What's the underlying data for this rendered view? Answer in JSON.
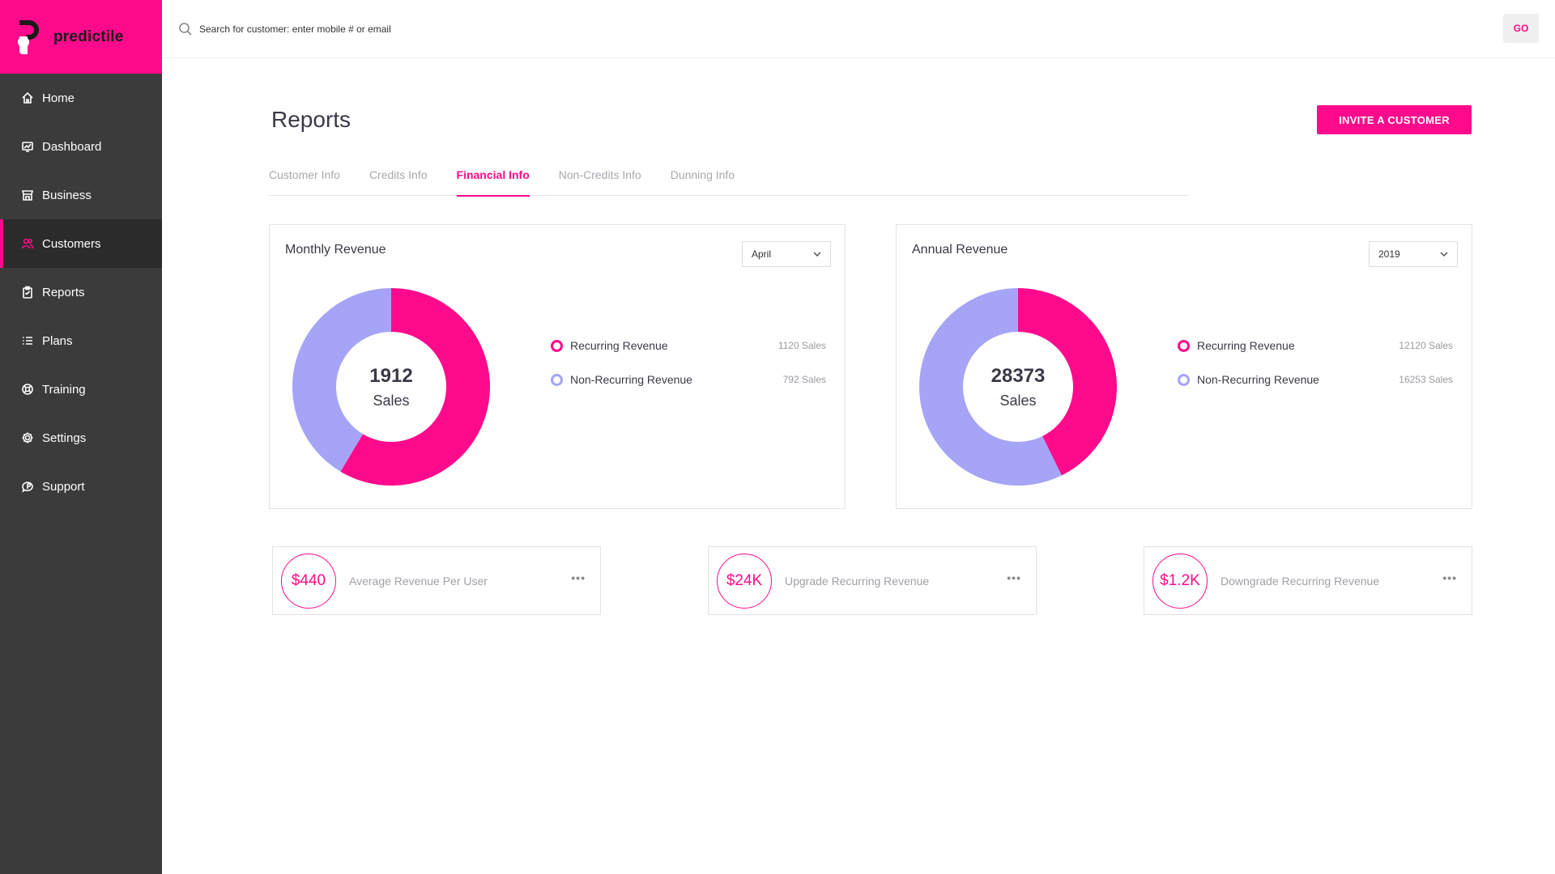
{
  "brand": {
    "name": "predictile",
    "color": "#ff0a8c"
  },
  "sidebar": {
    "items": [
      {
        "label": "Home",
        "icon": "home-icon"
      },
      {
        "label": "Dashboard",
        "icon": "dashboard-icon"
      },
      {
        "label": "Business",
        "icon": "store-icon"
      },
      {
        "label": "Customers",
        "icon": "users-icon",
        "active": true
      },
      {
        "label": "Reports",
        "icon": "clipboard-icon"
      },
      {
        "label": "Plans",
        "icon": "list-icon"
      },
      {
        "label": "Training",
        "icon": "lifebuoy-icon"
      },
      {
        "label": "Settings",
        "icon": "gear-icon"
      },
      {
        "label": "Support",
        "icon": "support-icon"
      }
    ]
  },
  "search": {
    "placeholder": "Search for customer: enter mobile # or email",
    "button": "GO"
  },
  "page": {
    "title": "Reports",
    "invite_button": "INVITE A CUSTOMER"
  },
  "tabs": [
    {
      "label": "Customer Info"
    },
    {
      "label": "Credits Info"
    },
    {
      "label": "Financial Info",
      "active": true
    },
    {
      "label": "Non-Credits Info"
    },
    {
      "label": "Dunning Info"
    }
  ],
  "monthly": {
    "title": "Monthly Revenue",
    "period": "April",
    "total": "1912",
    "unit": "Sales",
    "legend": [
      {
        "label": "Recurring Revenue",
        "count": "1120 Sales",
        "color": "#ff0a8c"
      },
      {
        "label": "Non-Recurring Revenue",
        "count": "792 Sales",
        "color": "#a6a4f6"
      }
    ]
  },
  "annual": {
    "title": "Annual Revenue",
    "period": "2019",
    "total": "28373",
    "unit": "Sales",
    "legend": [
      {
        "label": "Recurring Revenue",
        "count": "12120 Sales",
        "color": "#ff0a8c"
      },
      {
        "label": "Non-Recurring Revenue",
        "count": "16253 Sales",
        "color": "#a6a4f6"
      }
    ]
  },
  "chart_data": [
    {
      "type": "pie",
      "categories": [
        "Recurring Revenue",
        "Non-Recurring Revenue"
      ],
      "values": [
        1120,
        792
      ],
      "title": "Monthly Revenue"
    },
    {
      "type": "pie",
      "categories": [
        "Recurring Revenue",
        "Non-Recurring Revenue"
      ],
      "values": [
        12120,
        16253
      ],
      "title": "Annual Revenue"
    }
  ],
  "metrics": [
    {
      "value": "$440",
      "label": "Average Revenue Per User"
    },
    {
      "value": "$24K",
      "label": "Upgrade Recurring Revenue"
    },
    {
      "value": "$1.2K",
      "label": "Downgrade Recurring Revenue"
    }
  ],
  "more_glyph": "•••"
}
